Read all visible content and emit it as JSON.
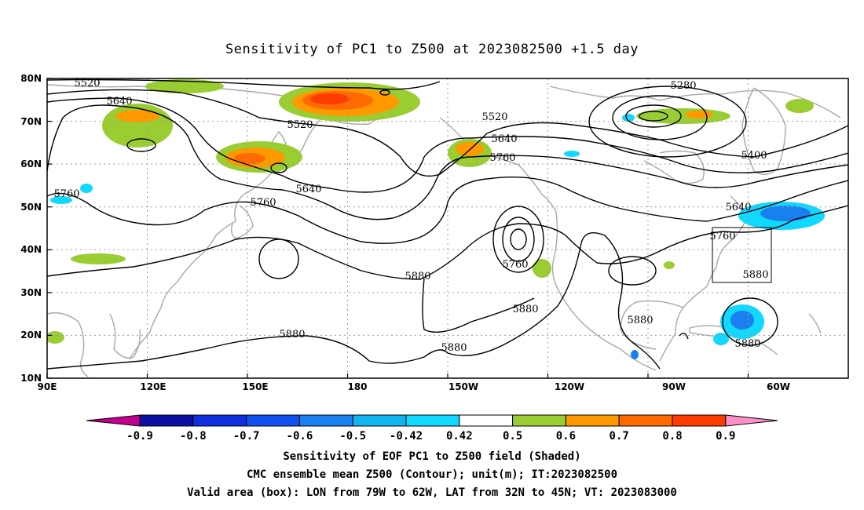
{
  "title": "Sensitivity of PC1 to Z500 at 2023082500 +1.5 day",
  "axes": {
    "x_ticks": [
      "90E",
      "120E",
      "150E",
      "180",
      "150W",
      "120W",
      "90W",
      "60W"
    ],
    "y_ticks": [
      "80N",
      "70N",
      "60N",
      "50N",
      "40N",
      "30N",
      "20N",
      "10N"
    ]
  },
  "contour_labels": [
    "5520",
    "5640",
    "5520",
    "5640",
    "5760",
    "5760",
    "5880",
    "5880",
    "5880",
    "5520",
    "5640",
    "5760",
    "5760",
    "5880",
    "5880",
    "5280",
    "5400",
    "5640",
    "5760",
    "5880",
    "5880"
  ],
  "colorbar": {
    "labels": [
      "-0.9",
      "-0.8",
      "-0.7",
      "-0.6",
      "-0.5",
      "-0.42",
      "0.42",
      "0.5",
      "0.6",
      "0.7",
      "0.8",
      "0.9"
    ],
    "colors": [
      "#c00090",
      "#0a10a0",
      "#1030e0",
      "#1050f0",
      "#1a80f0",
      "#10b4f0",
      "#10d8ff",
      "#ffffff",
      "#9acd32",
      "#ff9900",
      "#ff6a00",
      "#ff3c00",
      "#ff0000",
      "#ff8fc8"
    ]
  },
  "captions": [
    "Sensitivity of EOF PC1 to Z500 field (Shaded)",
    "CMC ensemble mean Z500 (Contour); unit(m); IT:2023082500",
    "Valid area (box): LON from 79W to 62W, LAT from 32N to 45N; VT: 2023083000"
  ],
  "map": {
    "lon_range": [
      "90E",
      "330E"
    ],
    "lat_range": [
      "10N",
      "80N"
    ],
    "valid_box": {
      "lon": [
        "79W",
        "62W"
      ],
      "lat": [
        "32N",
        "45N"
      ]
    },
    "grid_lines": "dotted"
  }
}
